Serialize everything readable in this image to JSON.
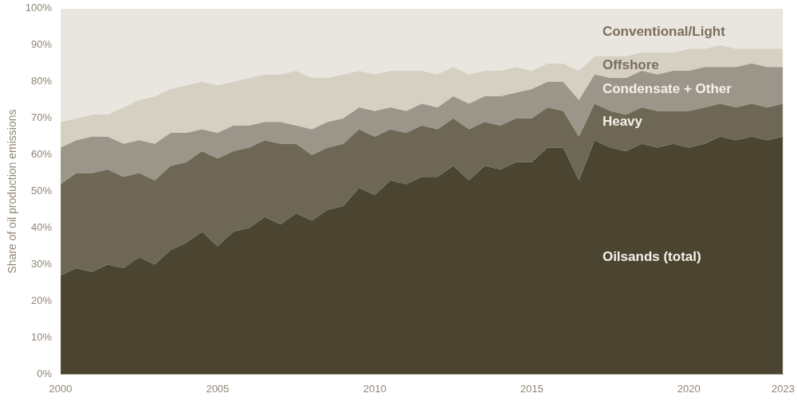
{
  "chart_data": {
    "type": "area",
    "y_label": "Share of oil production emissions",
    "stacked": true,
    "grid": false,
    "x": [
      2000,
      2000.5,
      2001,
      2001.5,
      2002,
      2002.5,
      2003,
      2003.5,
      2004,
      2004.5,
      2005,
      2005.5,
      2006,
      2006.5,
      2007,
      2007.5,
      2008,
      2008.5,
      2009,
      2009.5,
      2010,
      2010.5,
      2011,
      2011.5,
      2012,
      2012.5,
      2013,
      2013.5,
      2014,
      2014.5,
      2015,
      2015.5,
      2016,
      2016.5,
      2017,
      2017.5,
      2018,
      2018.5,
      2019,
      2019.5,
      2020,
      2020.5,
      2021,
      2021.5,
      2022,
      2022.5,
      2023
    ],
    "xlim": [
      2000,
      2023
    ],
    "xticks": [
      2000,
      2005,
      2010,
      2015,
      2020,
      2023
    ],
    "ylim": [
      0,
      100
    ],
    "yticks": [
      {
        "value": 0,
        "label": "0%"
      },
      {
        "value": 10,
        "label": "10%"
      },
      {
        "value": 20,
        "label": "20%"
      },
      {
        "value": 30,
        "label": "30%"
      },
      {
        "value": 40,
        "label": "40%"
      },
      {
        "value": 50,
        "label": "50%"
      },
      {
        "value": 60,
        "label": "60%"
      },
      {
        "value": 70,
        "label": "70%"
      },
      {
        "value": 80,
        "label": "80%"
      },
      {
        "value": 90,
        "label": "90%"
      },
      {
        "value": 100,
        "label": "100%"
      }
    ],
    "series": [
      {
        "name": "Oilsands (total)",
        "color": "#4a4431",
        "values": [
          27,
          29,
          28,
          30,
          29,
          32,
          30,
          34,
          36,
          39,
          35,
          39,
          40,
          43,
          41,
          44,
          42,
          45,
          46,
          51,
          49,
          53,
          52,
          54,
          54,
          57,
          53,
          57,
          56,
          58,
          58,
          62,
          62,
          53,
          64,
          62,
          61,
          63,
          62,
          63,
          62,
          63,
          65,
          64,
          65,
          64,
          65
        ]
      },
      {
        "name": "Heavy",
        "color": "#6f6756",
        "values": [
          25,
          26,
          27,
          26,
          25,
          23,
          23,
          23,
          22,
          22,
          24,
          22,
          22,
          21,
          22,
          19,
          18,
          17,
          17,
          16,
          16,
          14,
          14,
          14,
          13,
          13,
          14,
          12,
          12,
          12,
          12,
          11,
          10,
          12,
          10,
          10,
          10,
          10,
          10,
          9,
          10,
          10,
          9,
          9,
          9,
          9,
          9
        ]
      },
      {
        "name": "Condensate + Other",
        "color": "#9c968a",
        "values": [
          10,
          9,
          10,
          9,
          9,
          9,
          10,
          9,
          8,
          6,
          7,
          7,
          6,
          5,
          6,
          5,
          7,
          7,
          7,
          6,
          7,
          6,
          6,
          6,
          6,
          6,
          7,
          7,
          8,
          7,
          8,
          7,
          8,
          10,
          8,
          9,
          10,
          10,
          10,
          11,
          11,
          11,
          10,
          11,
          11,
          11,
          10
        ]
      },
      {
        "name": "Offshore",
        "color": "#d6d0c3",
        "values": [
          7,
          6,
          6,
          6,
          10,
          11,
          13,
          12,
          13,
          13,
          13,
          12,
          13,
          13,
          13,
          15,
          14,
          12,
          12,
          10,
          10,
          10,
          11,
          9,
          9,
          8,
          8,
          7,
          7,
          7,
          5,
          5,
          5,
          8,
          5,
          6,
          6,
          5,
          6,
          5,
          6,
          5,
          6,
          5,
          4,
          5,
          5
        ]
      },
      {
        "name": "Conventional/Light",
        "color": "#e9e6df",
        "values": [
          31,
          30,
          29,
          29,
          27,
          25,
          24,
          22,
          21,
          20,
          21,
          20,
          19,
          18,
          18,
          17,
          19,
          19,
          18,
          17,
          18,
          17,
          17,
          17,
          18,
          16,
          18,
          17,
          17,
          16,
          17,
          15,
          15,
          17,
          13,
          13,
          13,
          12,
          12,
          12,
          11,
          11,
          10,
          11,
          11,
          11,
          11
        ]
      }
    ]
  }
}
